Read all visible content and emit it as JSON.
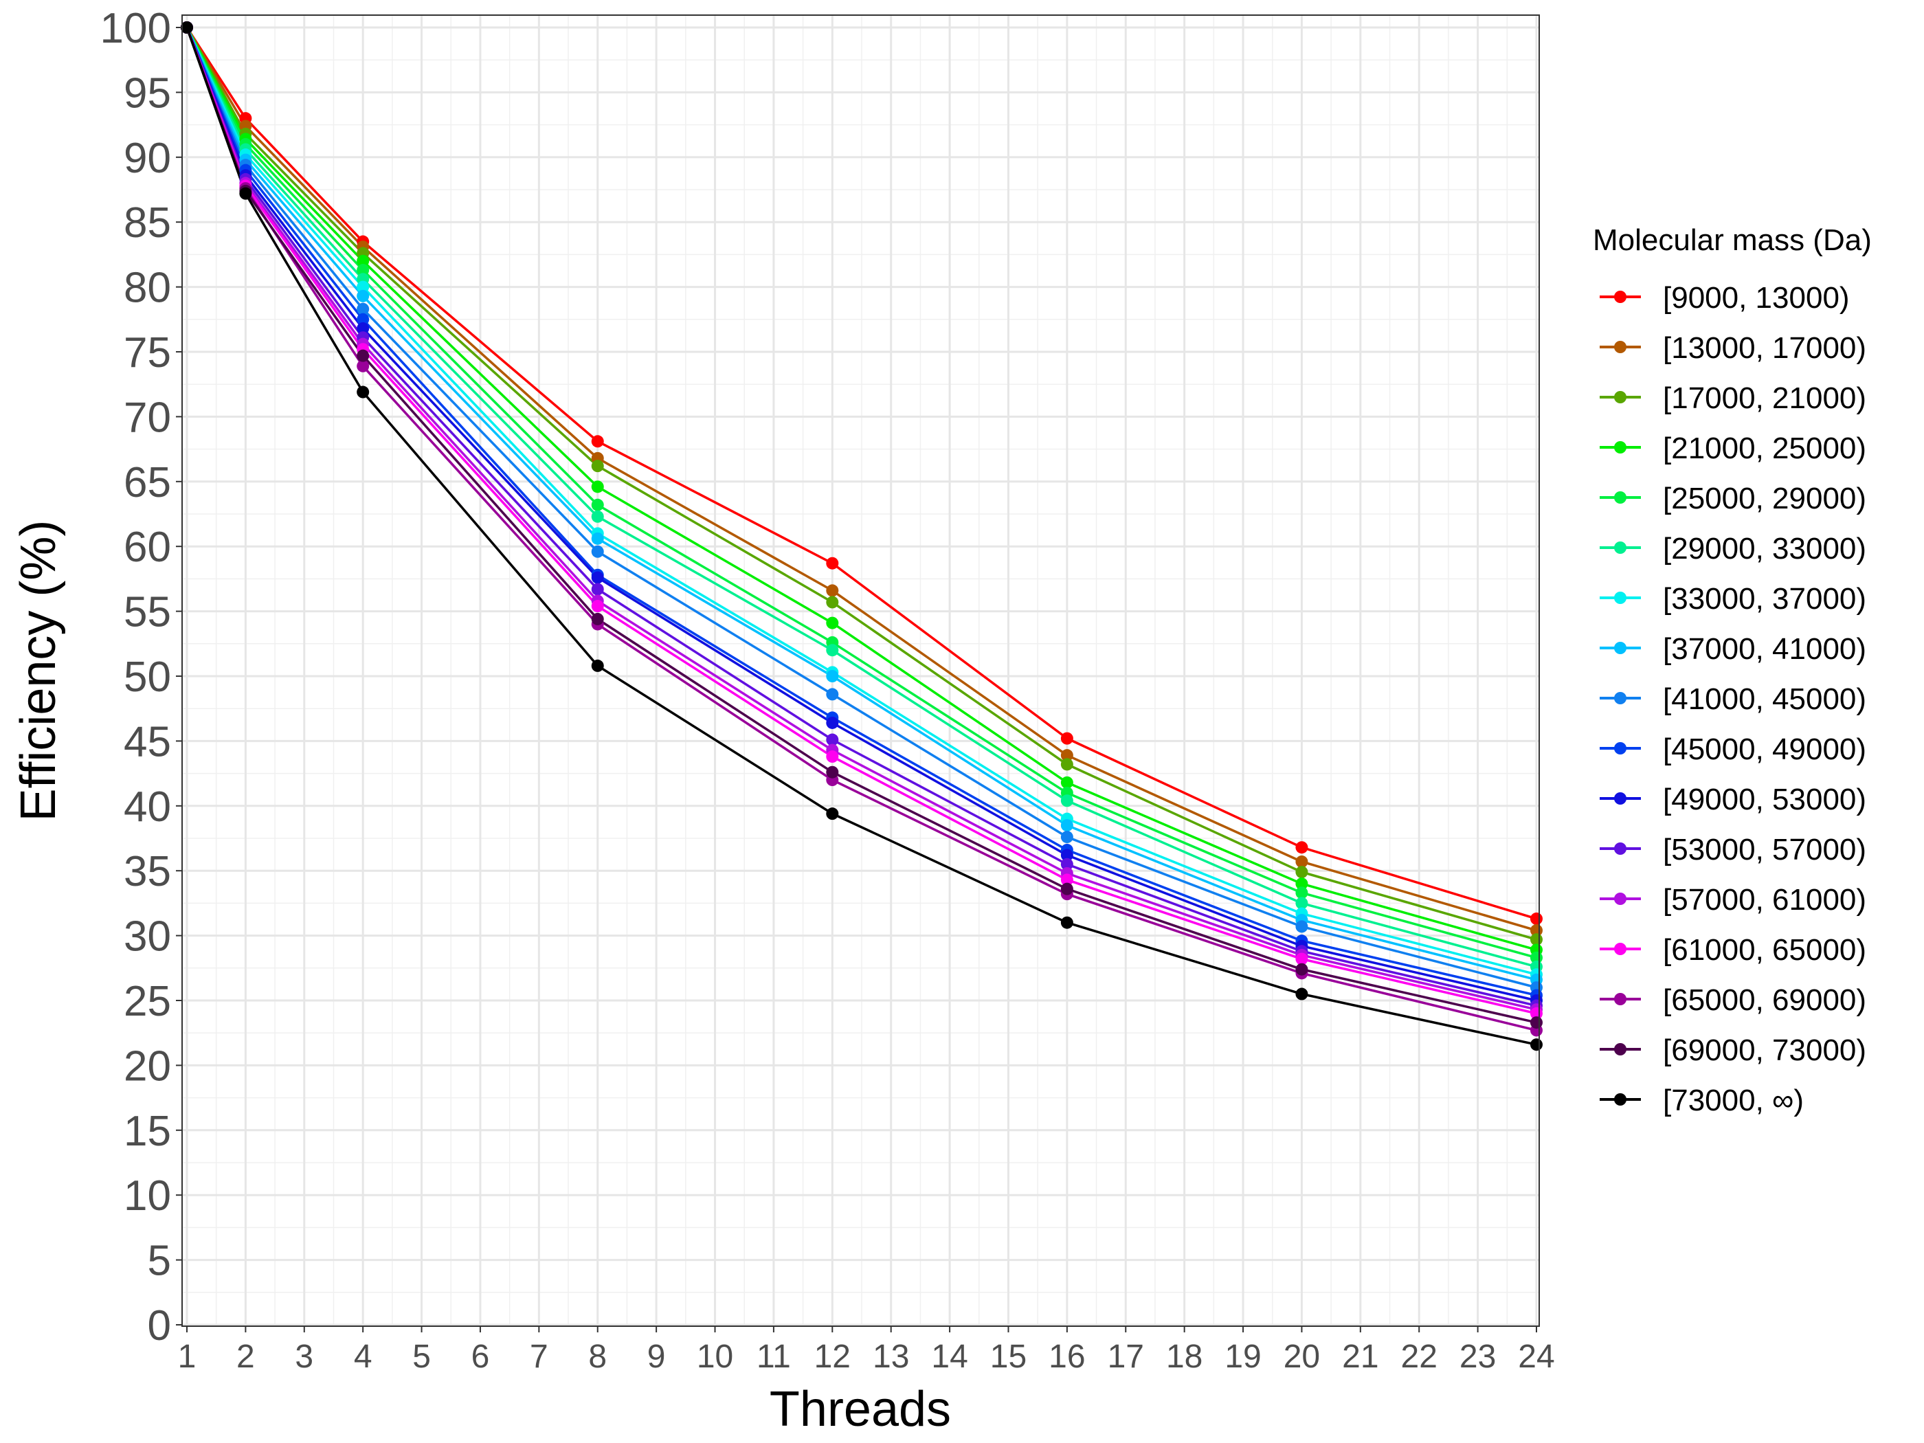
{
  "chart_data": {
    "type": "line",
    "xlabel": "Threads",
    "ylabel": "Efficiency (%)",
    "xlim": [
      1,
      24
    ],
    "ylim": [
      0,
      100
    ],
    "x_ticks": [
      1,
      2,
      3,
      4,
      5,
      6,
      7,
      8,
      9,
      10,
      11,
      12,
      13,
      14,
      15,
      16,
      17,
      18,
      19,
      20,
      21,
      22,
      23,
      24
    ],
    "y_ticks": [
      0,
      5,
      10,
      15,
      20,
      25,
      30,
      35,
      40,
      45,
      50,
      55,
      60,
      65,
      70,
      75,
      80,
      85,
      90,
      95,
      100
    ],
    "grid": true,
    "legend_title": "Molecular mass (Da)",
    "legend_position": "right",
    "x": [
      1,
      2,
      4,
      8,
      12,
      16,
      20,
      24
    ],
    "series": [
      {
        "name": "[9000, 13000)",
        "color": "#ff0000",
        "values": [
          100,
          93.0,
          83.5,
          68.1,
          58.7,
          45.2,
          36.8,
          31.3
        ]
      },
      {
        "name": "[13000, 17000)",
        "color": "#b35900",
        "values": [
          100,
          92.4,
          83.1,
          66.8,
          56.6,
          43.9,
          35.7,
          30.4
        ]
      },
      {
        "name": "[17000, 21000)",
        "color": "#59a600",
        "values": [
          100,
          91.8,
          82.6,
          66.2,
          55.7,
          43.2,
          34.9,
          29.7
        ]
      },
      {
        "name": "[21000, 25000)",
        "color": "#00ee00",
        "values": [
          100,
          91.4,
          82.0,
          64.6,
          54.1,
          41.8,
          34.0,
          28.9
        ]
      },
      {
        "name": "[25000, 29000)",
        "color": "#00f040",
        "values": [
          100,
          91.0,
          81.3,
          63.2,
          52.6,
          41.0,
          33.3,
          28.3
        ]
      },
      {
        "name": "[29000, 33000)",
        "color": "#00f090",
        "values": [
          100,
          90.6,
          80.6,
          62.3,
          52.0,
          40.4,
          32.5,
          27.6
        ]
      },
      {
        "name": "[33000, 37000)",
        "color": "#00f0f0",
        "values": [
          100,
          90.2,
          80.0,
          61.0,
          50.3,
          39.0,
          31.7,
          27.0
        ]
      },
      {
        "name": "[37000, 41000)",
        "color": "#00c0ff",
        "values": [
          100,
          89.8,
          79.3,
          60.6,
          50.0,
          38.5,
          31.2,
          26.6
        ]
      },
      {
        "name": "[41000, 45000)",
        "color": "#1080f0",
        "values": [
          100,
          89.4,
          78.3,
          59.6,
          48.6,
          37.6,
          30.7,
          26.0
        ]
      },
      {
        "name": "[45000, 49000)",
        "color": "#0040f0",
        "values": [
          100,
          89.0,
          77.5,
          57.8,
          46.8,
          36.6,
          29.6,
          25.4
        ]
      },
      {
        "name": "[49000, 53000)",
        "color": "#1010e0",
        "values": [
          100,
          88.6,
          76.8,
          57.6,
          46.4,
          36.2,
          29.2,
          25.0
        ]
      },
      {
        "name": "[53000, 57000)",
        "color": "#6010e0",
        "values": [
          100,
          88.3,
          76.1,
          56.7,
          45.1,
          35.5,
          28.8,
          24.6
        ]
      },
      {
        "name": "[57000, 61000)",
        "color": "#b010e0",
        "values": [
          100,
          88.0,
          75.6,
          55.8,
          44.3,
          34.8,
          28.5,
          24.3
        ]
      },
      {
        "name": "[61000, 65000)",
        "color": "#ff00f0",
        "values": [
          100,
          87.8,
          75.2,
          55.4,
          43.8,
          34.3,
          28.2,
          24.0
        ]
      },
      {
        "name": "[65000, 69000)",
        "color": "#990099",
        "values": [
          100,
          87.6,
          73.9,
          54.0,
          42.0,
          33.2,
          27.1,
          22.7
        ]
      },
      {
        "name": "[69000, 73000)",
        "color": "#4d004d",
        "values": [
          100,
          87.4,
          74.7,
          54.4,
          42.6,
          33.6,
          27.4,
          23.3
        ]
      },
      {
        "name": "[73000, ∞)",
        "color": "#000000",
        "values": [
          100,
          87.2,
          71.9,
          50.8,
          39.4,
          31.0,
          25.5,
          21.6
        ]
      }
    ]
  }
}
